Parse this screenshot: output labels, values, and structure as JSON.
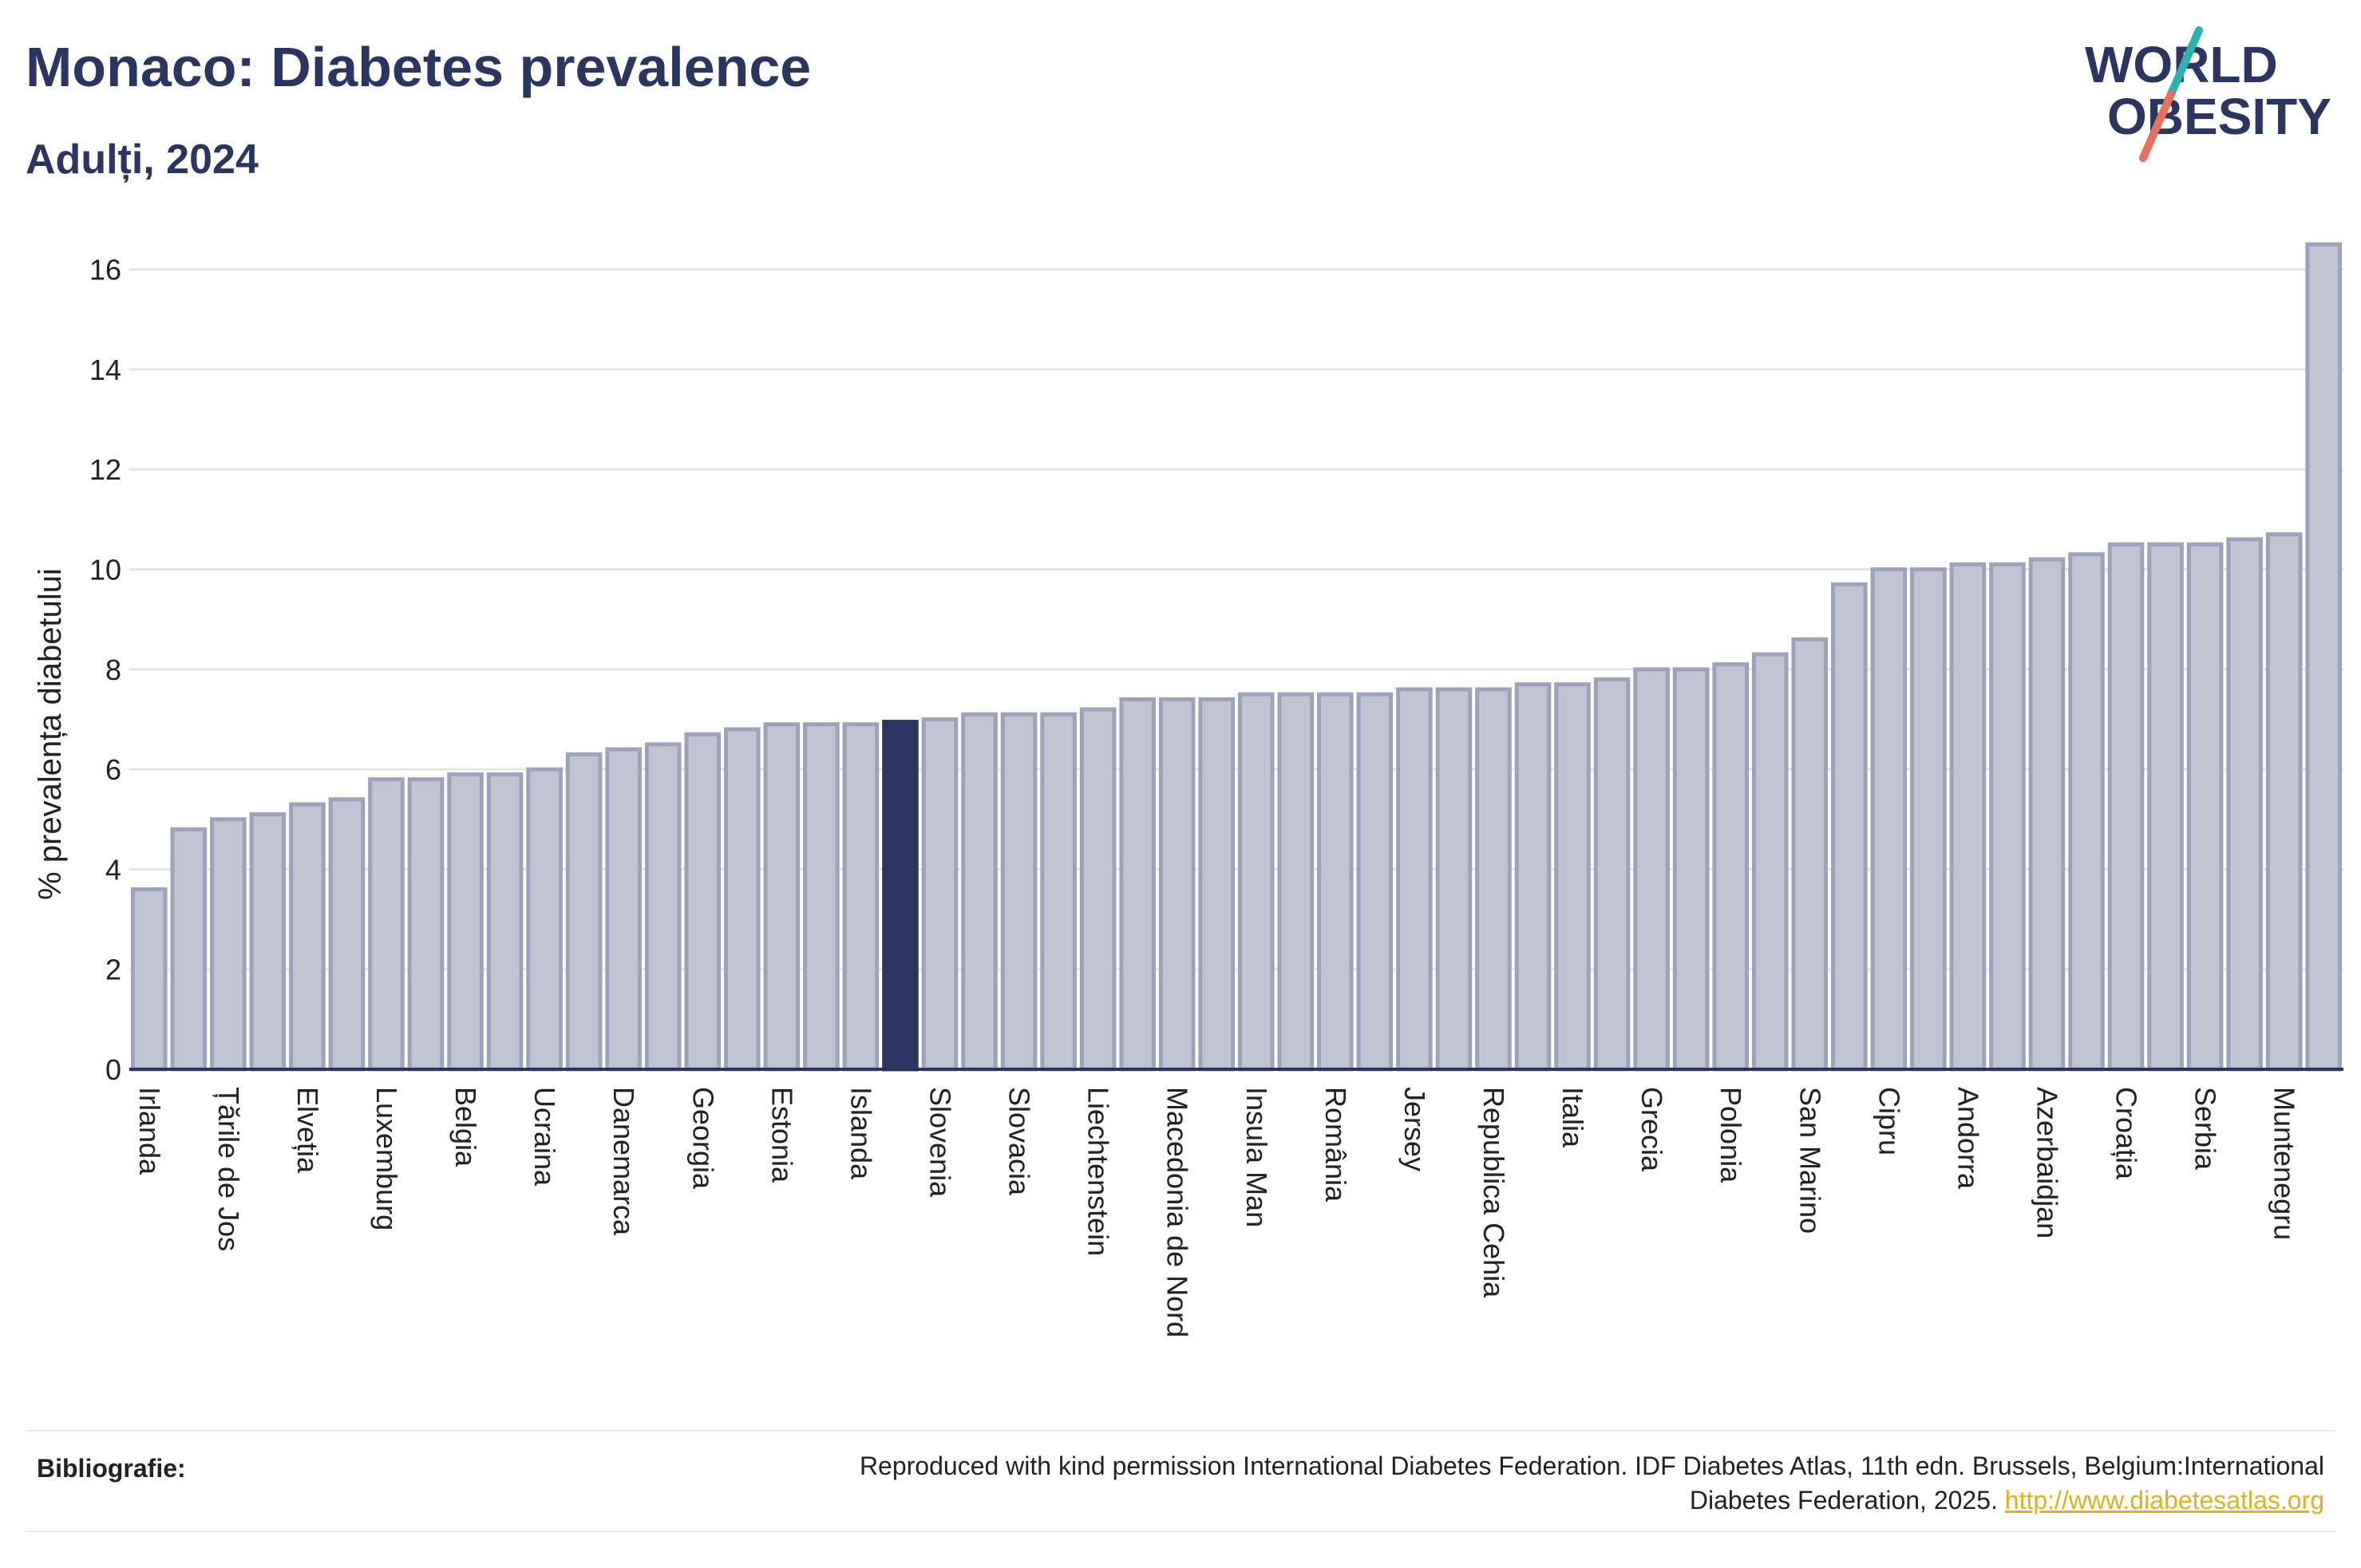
{
  "header": {
    "title": "Monaco: Diabetes prevalence",
    "subtitle": "Adulți, 2024"
  },
  "logo": {
    "line1": "WORLD",
    "line2": "OBESITY"
  },
  "reference": {
    "label": "Bibliografie:",
    "text_line1": "Reproduced with kind permission International Diabetes Federation. IDF Diabetes Atlas, 11th edn. Brussels, Belgium:International",
    "text_line2": "Diabetes Federation, 2025.",
    "link": "http://www.diabetesatlas.org"
  },
  "chart_data": {
    "type": "bar",
    "ylabel": "% prevalența diabetului",
    "ylim": [
      0,
      16.6
    ],
    "yticks": [
      0,
      2,
      4,
      6,
      8,
      10,
      12,
      14,
      16
    ],
    "grid": true,
    "bar_color": "#c0c4d3",
    "bar_border": "#9ea3bb",
    "highlight_color": "#2b3561",
    "highlight_index": 19,
    "values": [
      3.6,
      4.8,
      5.0,
      5.1,
      5.3,
      5.4,
      5.8,
      5.8,
      5.9,
      5.9,
      6.0,
      6.3,
      6.4,
      6.5,
      6.7,
      6.8,
      6.9,
      6.9,
      6.9,
      6.95,
      7.0,
      7.1,
      7.1,
      7.1,
      7.2,
      7.4,
      7.4,
      7.4,
      7.5,
      7.5,
      7.5,
      7.5,
      7.6,
      7.6,
      7.6,
      7.7,
      7.7,
      7.8,
      8.0,
      8.0,
      8.1,
      8.3,
      8.6,
      9.7,
      10.0,
      10.0,
      10.1,
      10.1,
      10.2,
      10.3,
      10.5,
      10.5,
      10.5,
      10.6,
      10.7,
      16.5
    ],
    "tick_labels": [
      {
        "index": 0,
        "label": "Irlanda"
      },
      {
        "index": 2,
        "label": "Țările de Jos"
      },
      {
        "index": 4,
        "label": "Elveția"
      },
      {
        "index": 6,
        "label": "Luxemburg"
      },
      {
        "index": 8,
        "label": "Belgia"
      },
      {
        "index": 10,
        "label": "Ucraina"
      },
      {
        "index": 12,
        "label": "Danemarca"
      },
      {
        "index": 14,
        "label": "Georgia"
      },
      {
        "index": 16,
        "label": "Estonia"
      },
      {
        "index": 18,
        "label": "Islanda"
      },
      {
        "index": 20,
        "label": "Slovenia"
      },
      {
        "index": 22,
        "label": "Slovacia"
      },
      {
        "index": 24,
        "label": "Liechtenstein"
      },
      {
        "index": 26,
        "label": "Macedonia de Nord"
      },
      {
        "index": 28,
        "label": "Insula Man"
      },
      {
        "index": 30,
        "label": "România"
      },
      {
        "index": 32,
        "label": "Jersey"
      },
      {
        "index": 34,
        "label": "Republica Cehia"
      },
      {
        "index": 36,
        "label": "Italia"
      },
      {
        "index": 38,
        "label": "Grecia"
      },
      {
        "index": 40,
        "label": "Polonia"
      },
      {
        "index": 42,
        "label": "San Marino"
      },
      {
        "index": 44,
        "label": "Cipru"
      },
      {
        "index": 46,
        "label": "Andorra"
      },
      {
        "index": 48,
        "label": "Azerbaidjan"
      },
      {
        "index": 50,
        "label": "Croația"
      },
      {
        "index": 52,
        "label": "Serbia"
      },
      {
        "index": 54,
        "label": "Muntenegru"
      }
    ]
  }
}
